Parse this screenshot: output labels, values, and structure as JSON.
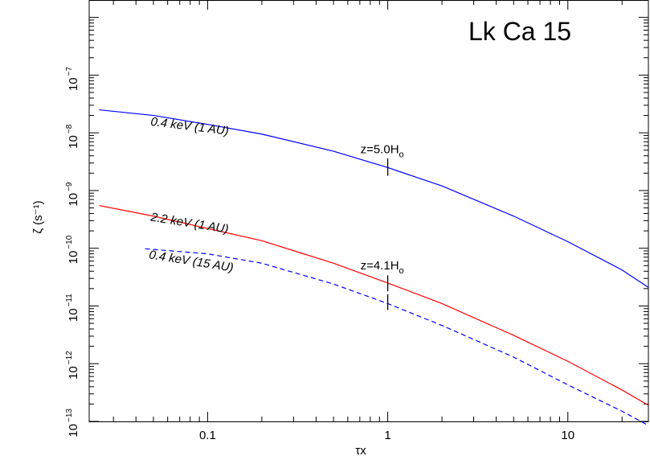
{
  "chart_data": {
    "type": "line",
    "title": "Lk Ca 15",
    "xlabel": "τx",
    "ylabel": "ζ (s⁻¹)",
    "x_scale": "log",
    "y_scale": "log",
    "xlim": [
      0.022,
      28
    ],
    "ylim": [
      1e-13,
      2e-06
    ],
    "grid": false,
    "x_ticks": [
      {
        "value": 0.1,
        "label": "0.1"
      },
      {
        "value": 1,
        "label": "1"
      },
      {
        "value": 10,
        "label": "10"
      }
    ],
    "y_ticks": [
      {
        "value": 1e-13,
        "base": "10",
        "exp": "−13"
      },
      {
        "value": 1e-12,
        "base": "10",
        "exp": "−12"
      },
      {
        "value": 1e-11,
        "base": "10",
        "exp": "−11"
      },
      {
        "value": 1e-10,
        "base": "10",
        "exp": "−10"
      },
      {
        "value": 1e-09,
        "base": "10",
        "exp": "−9"
      },
      {
        "value": 1e-08,
        "base": "10",
        "exp": "−8"
      },
      {
        "value": 1e-07,
        "base": "10",
        "exp": "−7"
      }
    ],
    "series": [
      {
        "name": "0.4 keV (1 AU)",
        "color": "#0000ff",
        "dash": "solid",
        "x": [
          0.025,
          0.05,
          0.1,
          0.2,
          0.5,
          1,
          2,
          5,
          10,
          20,
          28
        ],
        "y": [
          2.5e-08,
          2e-08,
          1.4e-08,
          9.5e-09,
          4.8e-09,
          2.5e-09,
          1.2e-09,
          3.6e-10,
          1.3e-10,
          4.2e-11,
          2.1e-11
        ]
      },
      {
        "name": "2.2 keV (1 AU)",
        "color": "#ff0000",
        "dash": "solid",
        "x": [
          0.025,
          0.05,
          0.1,
          0.2,
          0.5,
          1,
          2,
          5,
          10,
          20,
          28
        ],
        "y": [
          5.5e-10,
          3.6e-10,
          2.2e-10,
          1.35e-10,
          5.5e-11,
          2.5e-11,
          1.1e-11,
          3.1e-12,
          1.1e-12,
          3.5e-13,
          1.9e-13
        ]
      },
      {
        "name": "0.4 keV (15 AU)",
        "color": "#0000ff",
        "dash": "dashed",
        "x": [
          0.045,
          0.1,
          0.2,
          0.5,
          1,
          2,
          5,
          10,
          20,
          28
        ],
        "y": [
          9.8e-11,
          8e-11,
          5.5e-11,
          2.4e-11,
          1.1e-11,
          4.6e-12,
          1.3e-12,
          4.3e-13,
          1.5e-13,
          8.5e-14
        ]
      }
    ],
    "curve_labels": [
      {
        "text": "0.4 keV (1 AU)",
        "x": 0.048,
        "y": 1.35e-08,
        "angle": 7
      },
      {
        "text": "2.2 keV (1 AU)",
        "x": 0.048,
        "y": 3e-10,
        "angle": 9
      },
      {
        "text": "0.4 keV (15 AU)",
        "x": 0.047,
        "y": 6.7e-11,
        "angle": 9
      }
    ],
    "annotations": [
      {
        "main": "z=5.0H",
        "sub": "o",
        "x": 1,
        "y": 4.4e-09,
        "tick": [
          1.8e-09,
          3.6e-09
        ]
      },
      {
        "main": "z=4.1H",
        "sub": "o",
        "x": 1,
        "y": 4.3e-11,
        "tick": [
          1.8e-11,
          3.4e-11
        ]
      },
      {
        "main": "",
        "sub": "",
        "x": 1,
        "y": 0,
        "tick": [
          8.5e-12,
          1.6e-11
        ]
      }
    ]
  }
}
